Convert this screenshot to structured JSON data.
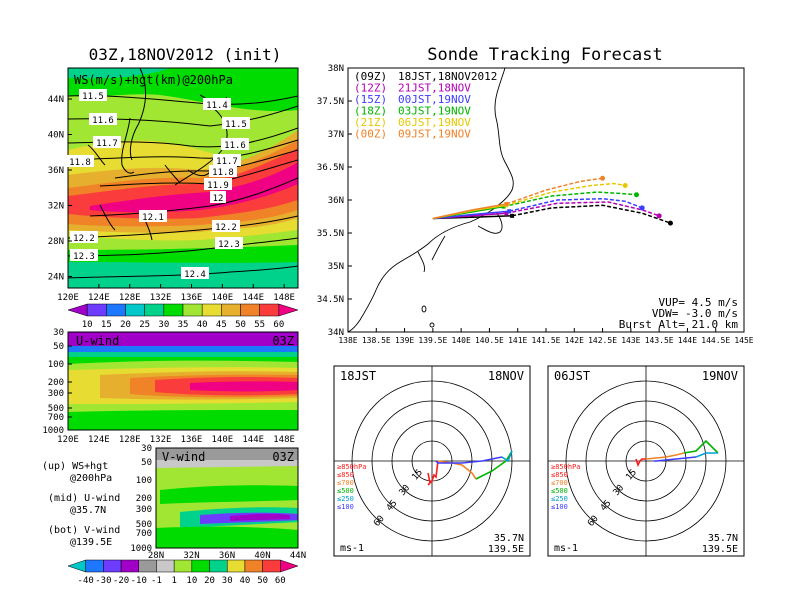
{
  "left_title": "03Z,18NOV2012 (init)",
  "right_title": "Sonde Tracking Forecast",
  "map_panel": {
    "label": "WS(m/s)+hgt(km)@200hPa",
    "lon_ticks": [
      "120E",
      "124E",
      "128E",
      "132E",
      "136E",
      "140E",
      "144E",
      "148E"
    ],
    "lat_ticks": [
      "44N",
      "40N",
      "36N",
      "32N",
      "28N",
      "24N"
    ],
    "contours": [
      {
        "label": "11.4"
      },
      {
        "label": "11.5"
      },
      {
        "label": "11.5"
      },
      {
        "label": "11.6"
      },
      {
        "label": "11.6"
      },
      {
        "label": "11.7"
      },
      {
        "label": "11.7"
      },
      {
        "label": "11.8"
      },
      {
        "label": "11.8"
      },
      {
        "label": "11.9"
      },
      {
        "label": "12"
      },
      {
        "label": "12.1"
      },
      {
        "label": "12.2"
      },
      {
        "label": "12.2"
      },
      {
        "label": "12.3"
      },
      {
        "label": "12.3"
      },
      {
        "label": "12.4"
      }
    ]
  },
  "ws_colorbar": {
    "labels": [
      "10",
      "15",
      "20",
      "25",
      "30",
      "35",
      "40",
      "45",
      "50",
      "55",
      "60"
    ],
    "colors": [
      "#a000c8",
      "#6e3cff",
      "#1e78ff",
      "#00c8c8",
      "#00d28c",
      "#00dc00",
      "#a0e632",
      "#e6dc32",
      "#e6af2d",
      "#f08228",
      "#fa3c3c",
      "#f00082"
    ]
  },
  "u_panel": {
    "label": "U-wind",
    "time": "03Z",
    "y_ticks": [
      "30",
      "50",
      "100",
      "200",
      "300",
      "500",
      "700",
      "1000"
    ],
    "x_ticks": [
      "120E",
      "124E",
      "128E",
      "132E",
      "136E",
      "140E",
      "144E",
      "148E"
    ]
  },
  "v_panel": {
    "label": "V-wind",
    "time": "03Z",
    "y_ticks": [
      "30",
      "50",
      "100",
      "200",
      "300",
      "500",
      "700",
      "1000"
    ],
    "x_ticks": [
      "28N",
      "32N",
      "36N",
      "40N",
      "44N"
    ]
  },
  "legend_text": {
    "up": "(up) WS+hgt",
    "up2": "@200hPa",
    "mid": "(mid) U-wind",
    "mid2": "@35.7N",
    "bot": "(bot) V-wind",
    "bot2": "@139.5E"
  },
  "wind_colorbar": {
    "labels": [
      "-40",
      "-30",
      "-20",
      "-10",
      "-1",
      "1",
      "10",
      "20",
      "30",
      "40",
      "50",
      "60"
    ],
    "colors": [
      "#00c8c8",
      "#1e78ff",
      "#6e3cff",
      "#a000c8",
      "#9a9a9a",
      "#c8c8c8",
      "#a0e632",
      "#00dc00",
      "#00d28c",
      "#e6dc32",
      "#f08228",
      "#fa3c3c",
      "#f00082"
    ]
  },
  "track_panel": {
    "lon_ticks": [
      "138E",
      "138.5E",
      "139E",
      "139.5E",
      "140E",
      "140.5E",
      "141E",
      "141.5E",
      "142E",
      "142.5E",
      "143E",
      "143.5E",
      "144E",
      "144.5E",
      "145E"
    ],
    "lat_ticks": [
      "38N",
      "37.5N",
      "37N",
      "36.5N",
      "36N",
      "35.5N",
      "35N",
      "34.5N",
      "34N"
    ],
    "legend": [
      {
        "code": "(09Z)",
        "text": "18JST,18NOV2012",
        "color": "#000000"
      },
      {
        "code": "(12Z)",
        "text": "21JST,18NOV",
        "color": "#b400b4"
      },
      {
        "code": "(15Z)",
        "text": "00JST,19NOV",
        "color": "#3c3cff"
      },
      {
        "code": "(18Z)",
        "text": "03JST,19NOV",
        "color": "#00b400"
      },
      {
        "code": "(21Z)",
        "text": "06JST,19NOV",
        "color": "#e6c800"
      },
      {
        "code": "(00Z)",
        "text": "09JST,19NOV",
        "color": "#f08228"
      }
    ],
    "params": [
      "VUP= 4.5 m/s",
      "VDW= -3.0 m/s",
      "Burst Alt= 21.0 km"
    ],
    "chart_data": {
      "type": "line",
      "x_unit": "deg E",
      "y_unit": "deg N",
      "xlim": [
        138,
        145
      ],
      "ylim": [
        34,
        38
      ],
      "series": [
        {
          "name": "(09Z) 18JST,18NOV2012",
          "color": "#000000",
          "ascent": [
            [
              139.5,
              35.72
            ],
            [
              140.2,
              35.74
            ],
            [
              140.9,
              35.76
            ]
          ],
          "drift": [
            [
              140.9,
              35.76
            ],
            [
              141.6,
              35.88
            ],
            [
              142.5,
              35.92
            ],
            [
              143.2,
              35.8
            ],
            [
              143.7,
              35.65
            ]
          ]
        },
        {
          "name": "(12Z) 21JST,18NOV",
          "color": "#b400b4",
          "ascent": [
            [
              139.5,
              35.72
            ],
            [
              140.2,
              35.76
            ],
            [
              140.8,
              35.8
            ]
          ],
          "drift": [
            [
              140.8,
              35.8
            ],
            [
              141.7,
              35.95
            ],
            [
              142.6,
              35.97
            ],
            [
              143.2,
              35.85
            ],
            [
              143.5,
              35.76
            ]
          ]
        },
        {
          "name": "(15Z) 00JST,19NOV",
          "color": "#3c3cff",
          "ascent": [
            [
              139.5,
              35.72
            ],
            [
              140.2,
              35.78
            ],
            [
              140.85,
              35.83
            ]
          ],
          "drift": [
            [
              140.85,
              35.83
            ],
            [
              141.7,
              36.0
            ],
            [
              142.5,
              36.02
            ],
            [
              142.9,
              35.98
            ],
            [
              143.2,
              35.88
            ]
          ]
        },
        {
          "name": "(18Z) 03JST,19NOV",
          "color": "#00b400",
          "ascent": [
            [
              139.5,
              35.72
            ],
            [
              140.2,
              35.82
            ],
            [
              140.75,
              35.9
            ]
          ],
          "drift": [
            [
              140.75,
              35.9
            ],
            [
              141.6,
              36.06
            ],
            [
              142.4,
              36.12
            ],
            [
              142.8,
              36.1
            ],
            [
              143.1,
              36.08
            ]
          ]
        },
        {
          "name": "(21Z) 06JST,19NOV",
          "color": "#e6c800",
          "ascent": [
            [
              139.5,
              35.72
            ],
            [
              140.2,
              35.84
            ],
            [
              140.8,
              35.92
            ]
          ],
          "drift": [
            [
              140.8,
              35.92
            ],
            [
              141.6,
              36.12
            ],
            [
              142.3,
              36.22
            ],
            [
              142.7,
              36.25
            ],
            [
              142.9,
              36.22
            ]
          ]
        },
        {
          "name": "(00Z) 09JST,19NOV",
          "color": "#f08228",
          "ascent": [
            [
              139.5,
              35.72
            ],
            [
              140.2,
              35.85
            ],
            [
              140.8,
              35.94
            ]
          ],
          "drift": [
            [
              140.8,
              35.94
            ],
            [
              141.5,
              36.15
            ],
            [
              142.1,
              36.28
            ],
            [
              142.5,
              36.33
            ]
          ]
        }
      ]
    }
  },
  "hodo_left": {
    "time": "18JST",
    "date": "18NOV",
    "ring_labels": [
      "15",
      "30",
      "45",
      "60"
    ],
    "levels": [
      "≥850hPa",
      "≤850",
      "≤700",
      "≤500",
      "≤250",
      "≤100"
    ],
    "level_colors": [
      "#fa1e1e",
      "#fa1e1e",
      "#f08228",
      "#00b400",
      "#00a0d2",
      "#3c3cff"
    ],
    "location": [
      "35.7N",
      "139.5E"
    ],
    "unit": "ms-1"
  },
  "hodo_right": {
    "time": "06JST",
    "date": "19NOV",
    "ring_labels": [
      "15",
      "30",
      "45",
      "60"
    ],
    "levels": [
      "≥850hPa",
      "≤850",
      "≤700",
      "≤500",
      "≤250",
      "≤100"
    ],
    "level_colors": [
      "#fa1e1e",
      "#fa1e1e",
      "#f08228",
      "#00b400",
      "#00a0d2",
      "#3c3cff"
    ],
    "location": [
      "35.7N",
      "139.5E"
    ],
    "unit": "ms-1"
  }
}
